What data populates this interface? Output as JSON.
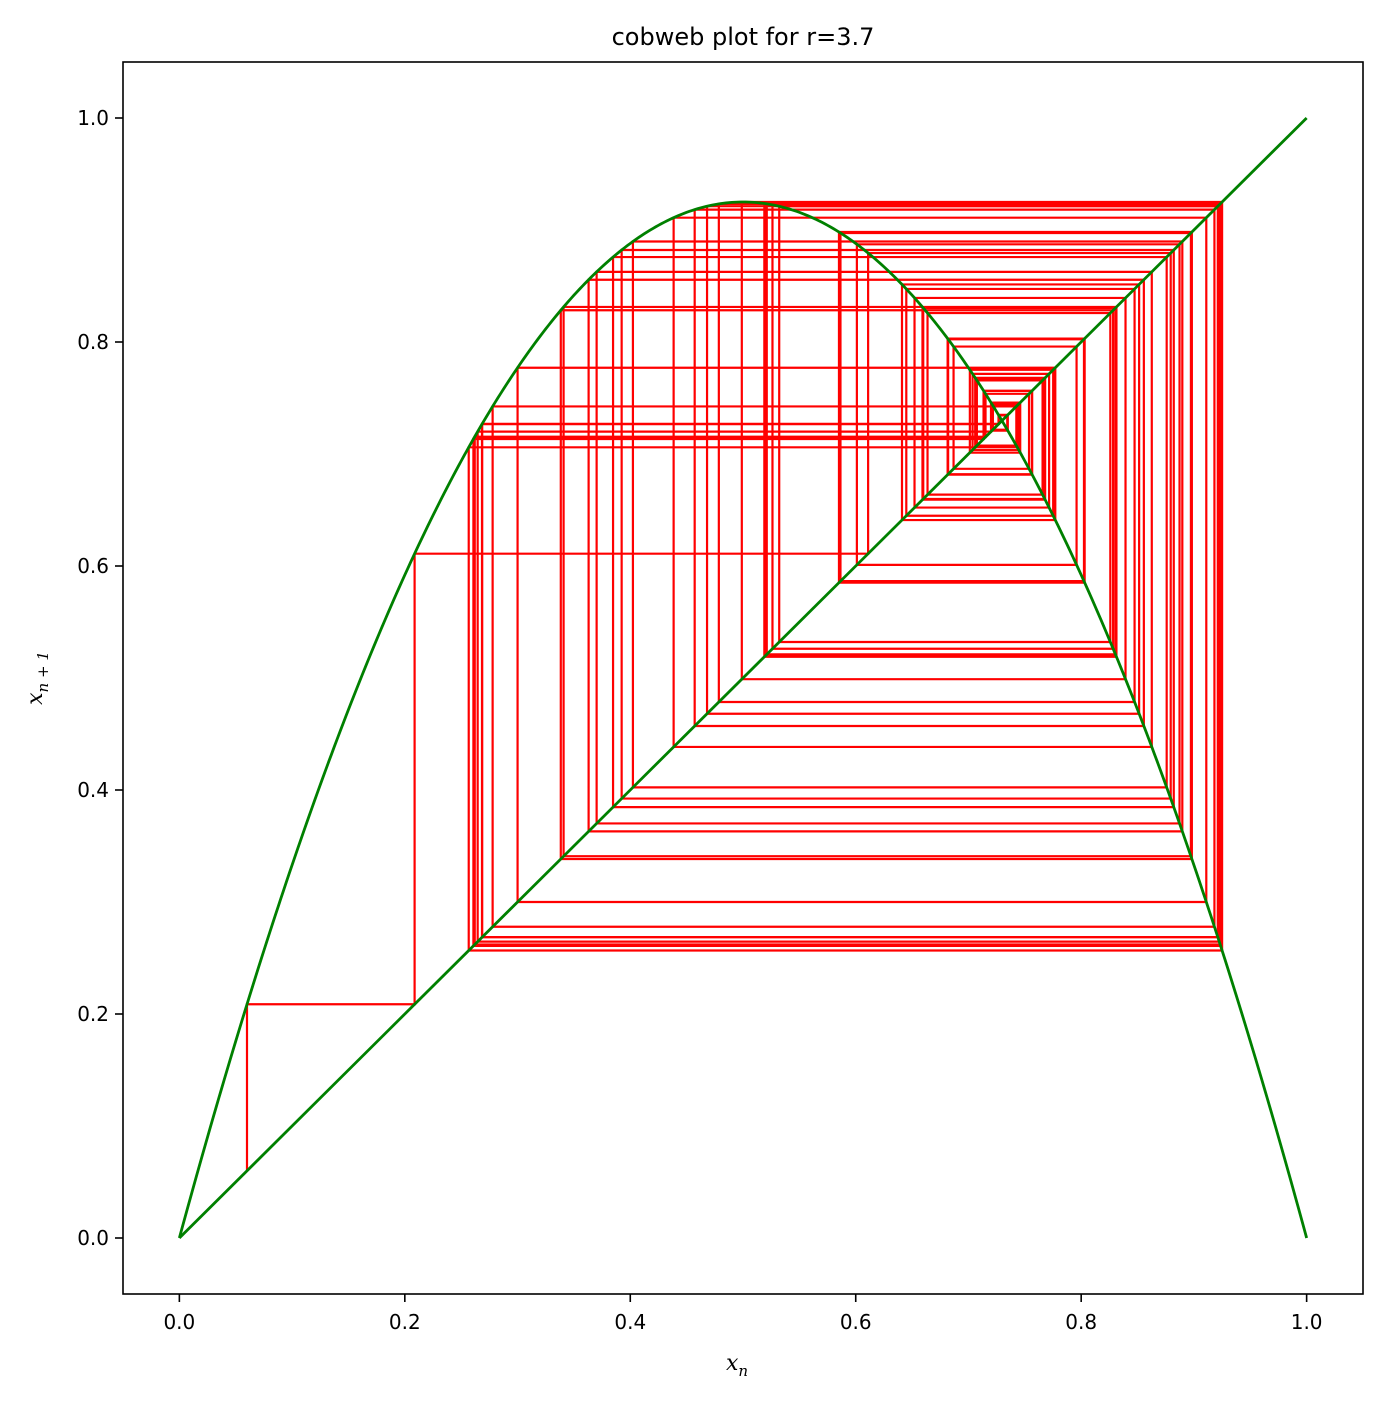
{
  "chart_data": {
    "type": "line",
    "title": "cobweb plot for r=3.7",
    "xlabel": {
      "base": "x",
      "sub": "n"
    },
    "ylabel": {
      "base": "x",
      "sub": "n + 1"
    },
    "xlim": [
      -0.05,
      1.05
    ],
    "ylim": [
      -0.05,
      1.05
    ],
    "xticks": [
      0.0,
      0.2,
      0.4,
      0.6,
      0.8,
      1.0
    ],
    "yticks": [
      0.0,
      0.2,
      0.4,
      0.6,
      0.8,
      1.0
    ],
    "xtick_labels": [
      "0.0",
      "0.2",
      "0.4",
      "0.6",
      "0.8",
      "1.0"
    ],
    "ytick_labels": [
      "0.0",
      "0.2",
      "0.4",
      "0.6",
      "0.8",
      "1.0"
    ],
    "grid": false,
    "logistic_map": {
      "r": 3.7,
      "function": "r*x*(1-x)",
      "x_range": [
        0.0,
        1.0
      ],
      "color": "#008000"
    },
    "identity_line": {
      "x": [
        0.0,
        1.0
      ],
      "y": [
        0.0,
        1.0
      ],
      "color": "#008000"
    },
    "cobweb": {
      "x0": 0.06,
      "iterations": 100,
      "color": "#ff0000"
    }
  }
}
